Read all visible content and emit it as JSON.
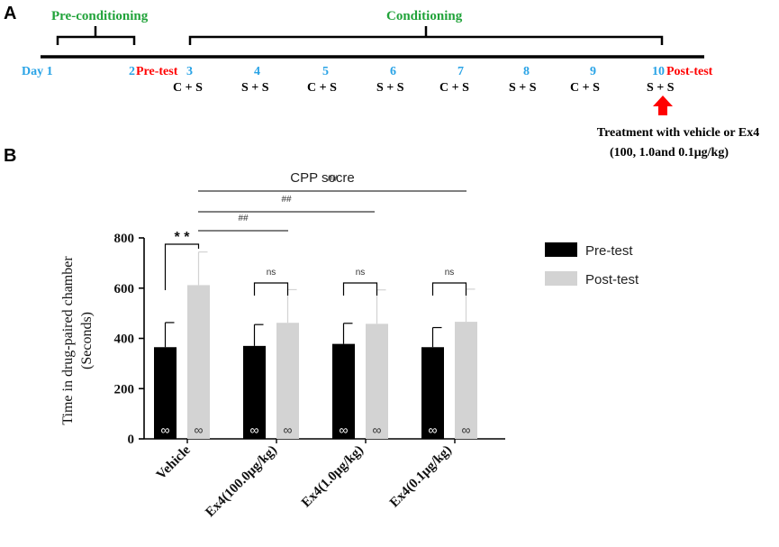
{
  "panels": {
    "a": "A",
    "b": "B"
  },
  "timeline": {
    "phases": {
      "pre_conditioning": "Pre-conditioning",
      "conditioning": "Conditioning"
    },
    "day_first": "Day 1",
    "days": [
      "2",
      "3",
      "4",
      "5",
      "6",
      "7",
      "8",
      "9",
      "10"
    ],
    "pre_test": "Pre-test",
    "post_test": "Post-test",
    "pairings": [
      "C + S",
      "S + S",
      "C + S",
      "S + S",
      "C + S",
      "S + S",
      "C + S",
      "S + S"
    ],
    "treatment_line1": "Treatment with vehicle or Ex4",
    "treatment_line2": "(100, 1.0and 0.1μg/kg)"
  },
  "chart_data": {
    "type": "bar",
    "title": "CPP socre",
    "ylabel_line1": "Time in drug-paired chamber",
    "ylabel_line2": "(Seconds)",
    "xlabel": "",
    "ylim": [
      0,
      800
    ],
    "yticks": [
      "0",
      "200",
      "400",
      "600",
      "800"
    ],
    "categories": [
      "Vehicle",
      "Ex4(100.0μg/kg)",
      "Ex4(1.0μg/kg)",
      "Ex4(0.1μg/kg)"
    ],
    "series": [
      {
        "name": "Pre-test",
        "color": "#000000",
        "values": [
          365,
          370,
          378,
          365
        ],
        "errors": [
          98,
          85,
          82,
          78
        ]
      },
      {
        "name": "Post-test",
        "color": "#d3d3d3",
        "values": [
          612,
          462,
          458,
          466
        ],
        "errors": [
          132,
          132,
          135,
          130
        ]
      }
    ],
    "n_markers": [
      "∞",
      "∞",
      "∞",
      "∞",
      "∞",
      "∞",
      "∞",
      "∞"
    ],
    "within_group_significance": [
      "* *",
      "ns",
      "ns",
      "ns"
    ],
    "between_group_significance": [
      "##",
      "##",
      "##"
    ],
    "legend_position": "right"
  }
}
